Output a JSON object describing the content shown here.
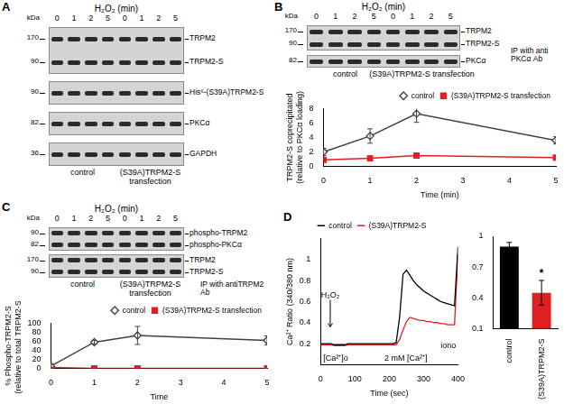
{
  "panel_labels": [
    "A",
    "B",
    "C",
    "D"
  ],
  "blots": [
    {
      "header": "H₂O₂ (min)",
      "unit": "kDa",
      "lanes": [
        "0",
        "1",
        "2",
        "5",
        "0",
        "1",
        "2",
        "5"
      ],
      "groups": [
        "control",
        "(S39A)TRPM2-S transfection"
      ],
      "strips": [
        [
          {
            "kDa": 170,
            "label": "TRPM2"
          },
          {
            "kDa": 90,
            "label": "TRPM2-S"
          }
        ],
        [
          {
            "kDa": 90,
            "label": "His⁶-(S39A)TRPM2-S"
          }
        ],
        [
          {
            "kDa": 82,
            "label": "PKCα"
          }
        ],
        [
          {
            "kDa": 36,
            "label": "GAPDH"
          }
        ]
      ]
    },
    {
      "header": "H₂O₂ (min)",
      "unit": "kDa",
      "lanes": [
        "0",
        "1",
        "2",
        "5",
        "0",
        "1",
        "2",
        "5"
      ],
      "groups": [
        "control",
        "(S39A)TRPM2-S transfection"
      ],
      "strips": [
        [
          {
            "kDa": 170,
            "label": "TRPM2"
          },
          {
            "kDa": 90,
            "label": "TRPM2-S"
          }
        ],
        [
          {
            "kDa": 82,
            "label": "PKCα"
          }
        ]
      ],
      "side_label": "IP with anti PKCα Ab"
    },
    {
      "header": "H₂O₂ (min)",
      "unit": "kDa",
      "lanes": [
        "0",
        "1",
        "2",
        "5",
        "0",
        "1",
        "2",
        "5"
      ],
      "groups": [
        "control",
        "(S39A)TRPM2-S transfection"
      ],
      "strips": [
        [
          {
            "kDa": 90,
            "label": "phospho-TRPM2"
          },
          {
            "kDa": 82,
            "label": "phospho-PKCα"
          }
        ],
        [
          {
            "kDa": 170,
            "label": "TRPM2"
          },
          {
            "kDa": 90,
            "label": "TRPM2-S"
          }
        ]
      ],
      "side_label": "IP with antiTRPM2 Ab"
    }
  ],
  "chart_data": [
    {
      "type": "line",
      "x_label": "Time (min)",
      "y_label": [
        "TRPM2-S coprecipitated",
        "(relative to PKCα loading)"
      ],
      "x": [
        0,
        1,
        2,
        5
      ],
      "xlim": [
        0,
        5
      ],
      "xticks": [
        0,
        1,
        2,
        3,
        4,
        5
      ],
      "ylim": [
        0,
        8
      ],
      "yticks": [
        0,
        2,
        4,
        6,
        8
      ],
      "grid": false,
      "legend": "top",
      "series": [
        {
          "name": "control",
          "color": "#404040",
          "marker": "diamond",
          "line_style": "solid",
          "values": [
            2,
            4.2,
            7.3,
            3.6
          ],
          "errors": [
            0.5,
            1.0,
            1.2,
            0.5
          ]
        },
        {
          "name": "(S39A)TRPM2-S transfection",
          "color": "#e02020",
          "marker": "square",
          "line_style": "solid",
          "values": [
            0.9,
            1.1,
            1.5,
            1.2
          ],
          "errors": [
            0.3,
            0.3,
            0.3,
            0.2
          ]
        }
      ]
    },
    {
      "type": "line",
      "x_label": "Time",
      "y_label": [
        "% Phospho-TRPM2-S",
        "(relative to total TRPM2-S)"
      ],
      "x": [
        0,
        1,
        2,
        5
      ],
      "xlim": [
        0,
        5
      ],
      "xticks": [
        0,
        1,
        2,
        3,
        4,
        5
      ],
      "ylim": [
        0,
        100
      ],
      "yticks": [
        0,
        20,
        40,
        60,
        80,
        100
      ],
      "grid": false,
      "legend": "top",
      "series": [
        {
          "name": "control",
          "color": "#404040",
          "marker": "diamond",
          "line_style": "solid",
          "values": [
            5,
            58,
            73,
            62
          ],
          "errors": [
            3,
            4,
            20,
            10
          ]
        },
        {
          "name": "(S39A)TRPM2-S transfection",
          "color": "#e02020",
          "marker": "square",
          "line_style": "solid",
          "values": [
            2,
            0,
            0,
            0
          ],
          "errors": [
            1,
            1,
            1,
            1
          ]
        }
      ]
    },
    {
      "type": "line",
      "x_label": "Time (sec)",
      "y_label": "Ca²⁺ Ratio (340/380 nm)",
      "x": [
        0,
        10,
        20,
        30,
        40,
        50,
        60,
        70,
        80,
        90,
        100,
        110,
        120,
        130,
        140,
        150,
        160,
        170,
        180,
        190,
        200,
        210,
        220,
        230,
        240,
        250,
        260,
        270,
        280,
        290,
        300,
        310,
        320,
        330,
        340,
        350,
        360,
        370,
        380,
        390,
        400
      ],
      "xlim": [
        0,
        400
      ],
      "xticks": [
        0,
        100,
        200,
        300,
        400
      ],
      "ylim": [
        0,
        1.2
      ],
      "yticks": [
        0.2,
        0.4,
        0.6,
        0.8,
        1
      ],
      "grid": false,
      "legend": "top",
      "annotations": [
        "H₂O₂",
        "[Ca²⁺]o",
        "2 mM [Ca²⁺]",
        "iono"
      ],
      "series": [
        {
          "name": "control",
          "color": "#000000",
          "marker": "none",
          "line_style": "solid",
          "values": [
            0.2,
            0.2,
            0.2,
            0.2,
            0.19,
            0.19,
            0.19,
            0.19,
            0.2,
            0.2,
            0.2,
            0.2,
            0.2,
            0.2,
            0.2,
            0.2,
            0.2,
            0.2,
            0.2,
            0.2,
            0.2,
            0.2,
            0.21,
            0.45,
            0.86,
            0.9,
            0.85,
            0.8,
            0.76,
            0.73,
            0.7,
            0.68,
            0.66,
            0.64,
            0.62,
            0.6,
            0.59,
            0.58,
            0.57,
            0.56,
            1.12
          ]
        },
        {
          "name": "(S39A)TRPM2-S",
          "color": "#e02020",
          "marker": "none",
          "line_style": "solid",
          "values": [
            0.19,
            0.19,
            0.19,
            0.19,
            0.18,
            0.18,
            0.18,
            0.18,
            0.19,
            0.19,
            0.19,
            0.19,
            0.19,
            0.19,
            0.19,
            0.19,
            0.19,
            0.19,
            0.19,
            0.19,
            0.19,
            0.19,
            0.19,
            0.24,
            0.33,
            0.41,
            0.45,
            0.44,
            0.43,
            0.42,
            0.42,
            0.41,
            0.41,
            0.4,
            0.4,
            0.39,
            0.39,
            0.38,
            0.38,
            0.38,
            1.05
          ]
        }
      ]
    },
    {
      "type": "bar",
      "categories": [
        "control",
        "(S39A)TRPM2-S"
      ],
      "values": [
        0.9,
        0.45
      ],
      "errors": [
        0.04,
        0.12
      ],
      "colors": [
        "#000000",
        "#e02020"
      ],
      "ylim": [
        0.1,
        1
      ],
      "yticks": [
        0.1,
        0.4,
        0.7,
        1
      ],
      "grid": false,
      "annotations": [
        {
          "category": "(S39A)TRPM2-S",
          "text": "*"
        }
      ]
    }
  ]
}
